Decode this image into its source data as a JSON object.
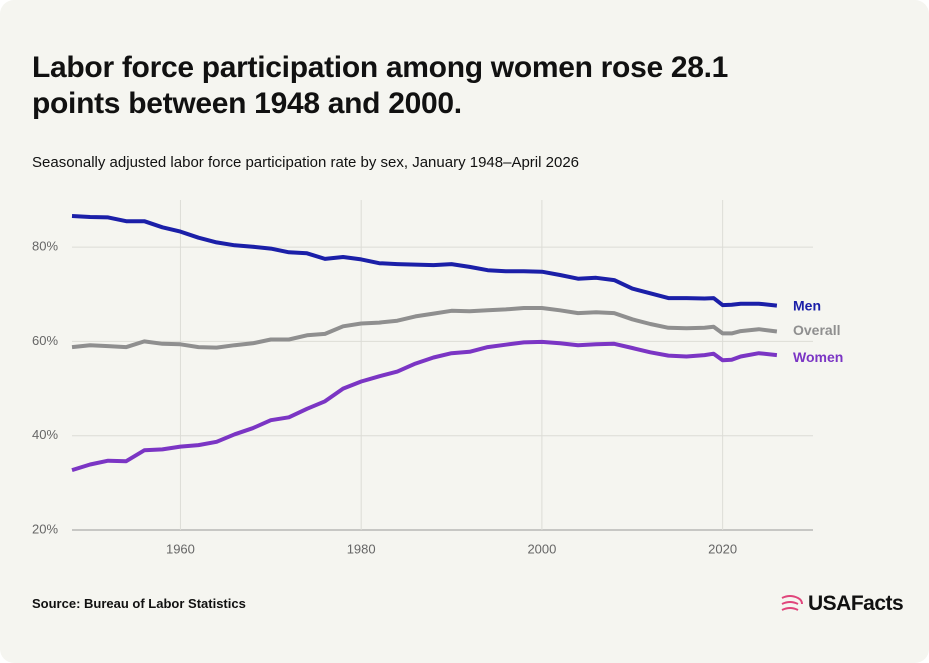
{
  "chart_data": {
    "type": "line",
    "title": "Labor force participation among women rose 28.1 points between 1948 and 2000.",
    "subtitle": "Seasonally adjusted labor force participation rate by sex, January 1948–April 2026",
    "source": "Source: Bureau of Labor Statistics",
    "brand": "USAFacts",
    "x": [
      1948,
      1950,
      1952,
      1954,
      1956,
      1958,
      1960,
      1962,
      1964,
      1966,
      1968,
      1970,
      1972,
      1974,
      1976,
      1978,
      1980,
      1982,
      1984,
      1986,
      1988,
      1990,
      1992,
      1994,
      1996,
      1998,
      2000,
      2002,
      2004,
      2006,
      2008,
      2010,
      2012,
      2014,
      2016,
      2018,
      2019,
      2020,
      2021,
      2022,
      2024,
      2026
    ],
    "series": [
      {
        "name": "Men",
        "color": "#1b1fa8",
        "values": [
          86.6,
          86.4,
          86.3,
          85.5,
          85.5,
          84.2,
          83.3,
          82.0,
          81.0,
          80.4,
          80.1,
          79.7,
          78.9,
          78.7,
          77.5,
          77.9,
          77.4,
          76.6,
          76.4,
          76.3,
          76.2,
          76.4,
          75.8,
          75.1,
          74.9,
          74.9,
          74.8,
          74.1,
          73.3,
          73.5,
          73.0,
          71.2,
          70.2,
          69.2,
          69.2,
          69.1,
          69.2,
          67.7,
          67.8,
          68.0,
          68.0,
          67.6
        ]
      },
      {
        "name": "Overall",
        "color": "#8f8f8f",
        "values": [
          58.8,
          59.2,
          59.0,
          58.8,
          60.0,
          59.5,
          59.4,
          58.8,
          58.7,
          59.2,
          59.6,
          60.4,
          60.4,
          61.3,
          61.6,
          63.2,
          63.8,
          64.0,
          64.4,
          65.3,
          65.9,
          66.5,
          66.4,
          66.6,
          66.8,
          67.1,
          67.1,
          66.6,
          66.0,
          66.2,
          66.0,
          64.7,
          63.7,
          62.9,
          62.8,
          62.9,
          63.1,
          61.7,
          61.7,
          62.2,
          62.6,
          62.1
        ]
      },
      {
        "name": "Women",
        "color": "#7b35c4",
        "values": [
          32.7,
          33.9,
          34.7,
          34.6,
          36.9,
          37.1,
          37.7,
          38.0,
          38.7,
          40.3,
          41.6,
          43.3,
          43.9,
          45.7,
          47.3,
          50.0,
          51.5,
          52.6,
          53.6,
          55.3,
          56.6,
          57.5,
          57.8,
          58.8,
          59.3,
          59.8,
          59.9,
          59.6,
          59.2,
          59.4,
          59.5,
          58.6,
          57.7,
          57.0,
          56.8,
          57.1,
          57.4,
          56.0,
          56.1,
          56.8,
          57.5,
          57.1
        ]
      }
    ],
    "xlim": [
      1948,
      2030
    ],
    "xticks": [
      1960,
      1980,
      2000,
      2020
    ],
    "ylim": [
      20,
      90
    ],
    "yticks": [
      {
        "value": 20,
        "label": "20%"
      },
      {
        "value": 40,
        "label": "40%"
      },
      {
        "value": 60,
        "label": "60%"
      },
      {
        "value": 80,
        "label": "80%"
      }
    ],
    "grid": true
  }
}
